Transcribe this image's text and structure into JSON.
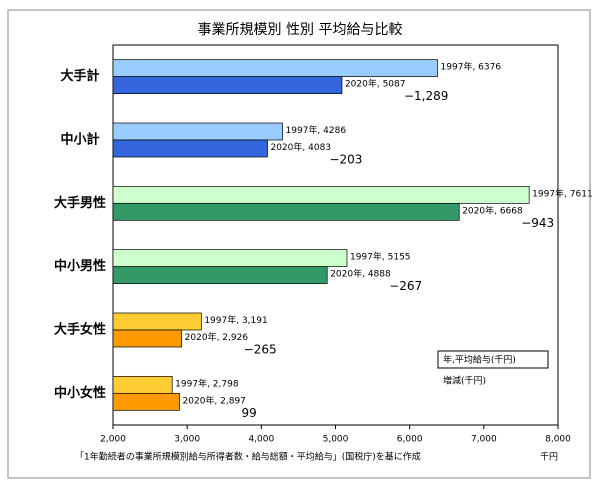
{
  "chart_data": {
    "type": "bar",
    "orientation": "horizontal",
    "title": "事業所規模別 性別 平均給与比較",
    "categories": [
      "大手計",
      "中小計",
      "大手男性",
      "中小男性",
      "大手女性",
      "中小女性"
    ],
    "series": [
      {
        "name": "1997年",
        "colors": [
          "#99ccff",
          "#99ccff",
          "#ccffcc",
          "#ccffcc",
          "#ffcc33",
          "#ffcc33"
        ],
        "values": [
          6376,
          4286,
          7611,
          5155,
          3191,
          2798
        ],
        "value_labels": [
          "1997年, 6376",
          "1997年, 4286",
          "1997年, 7611",
          "1997年, 5155",
          "1997年, 3,191",
          "1997年, 2,798"
        ]
      },
      {
        "name": "2020年",
        "colors": [
          "#3366dd",
          "#3366dd",
          "#339966",
          "#339966",
          "#ff9900",
          "#ff9900"
        ],
        "values": [
          5087,
          4083,
          6668,
          4888,
          2926,
          2897
        ],
        "value_labels": [
          "2020年, 5087",
          "2020年, 4083",
          "2020年, 6668",
          "2020年, 4888",
          "2020年, 2,926",
          "2020年, 2,897"
        ]
      }
    ],
    "changes": {
      "values": [
        -1289,
        -203,
        -943,
        -267,
        -265,
        99
      ],
      "value_labels": [
        "−1,289",
        "−203",
        "−943",
        "−267",
        "−265",
        "99"
      ]
    },
    "xlim": [
      2000,
      8000
    ],
    "xticks": [
      {
        "value": 2000,
        "label": "2,000"
      },
      {
        "value": 3000,
        "label": "3,000"
      },
      {
        "value": 4000,
        "label": "4,000"
      },
      {
        "value": 5000,
        "label": "5,000"
      },
      {
        "value": 6000,
        "label": "6,000"
      },
      {
        "value": 7000,
        "label": "7,000"
      },
      {
        "value": 8000,
        "label": "8,000"
      }
    ],
    "xlabel": "千円",
    "legend_label": "年,平均給与(千円)",
    "change_label": "増減(千円)",
    "source": "「1年勤続者の事業所規模別給与所得者数・給与総額・平均給与」(国税庁)を基に作成",
    "grid": false
  }
}
